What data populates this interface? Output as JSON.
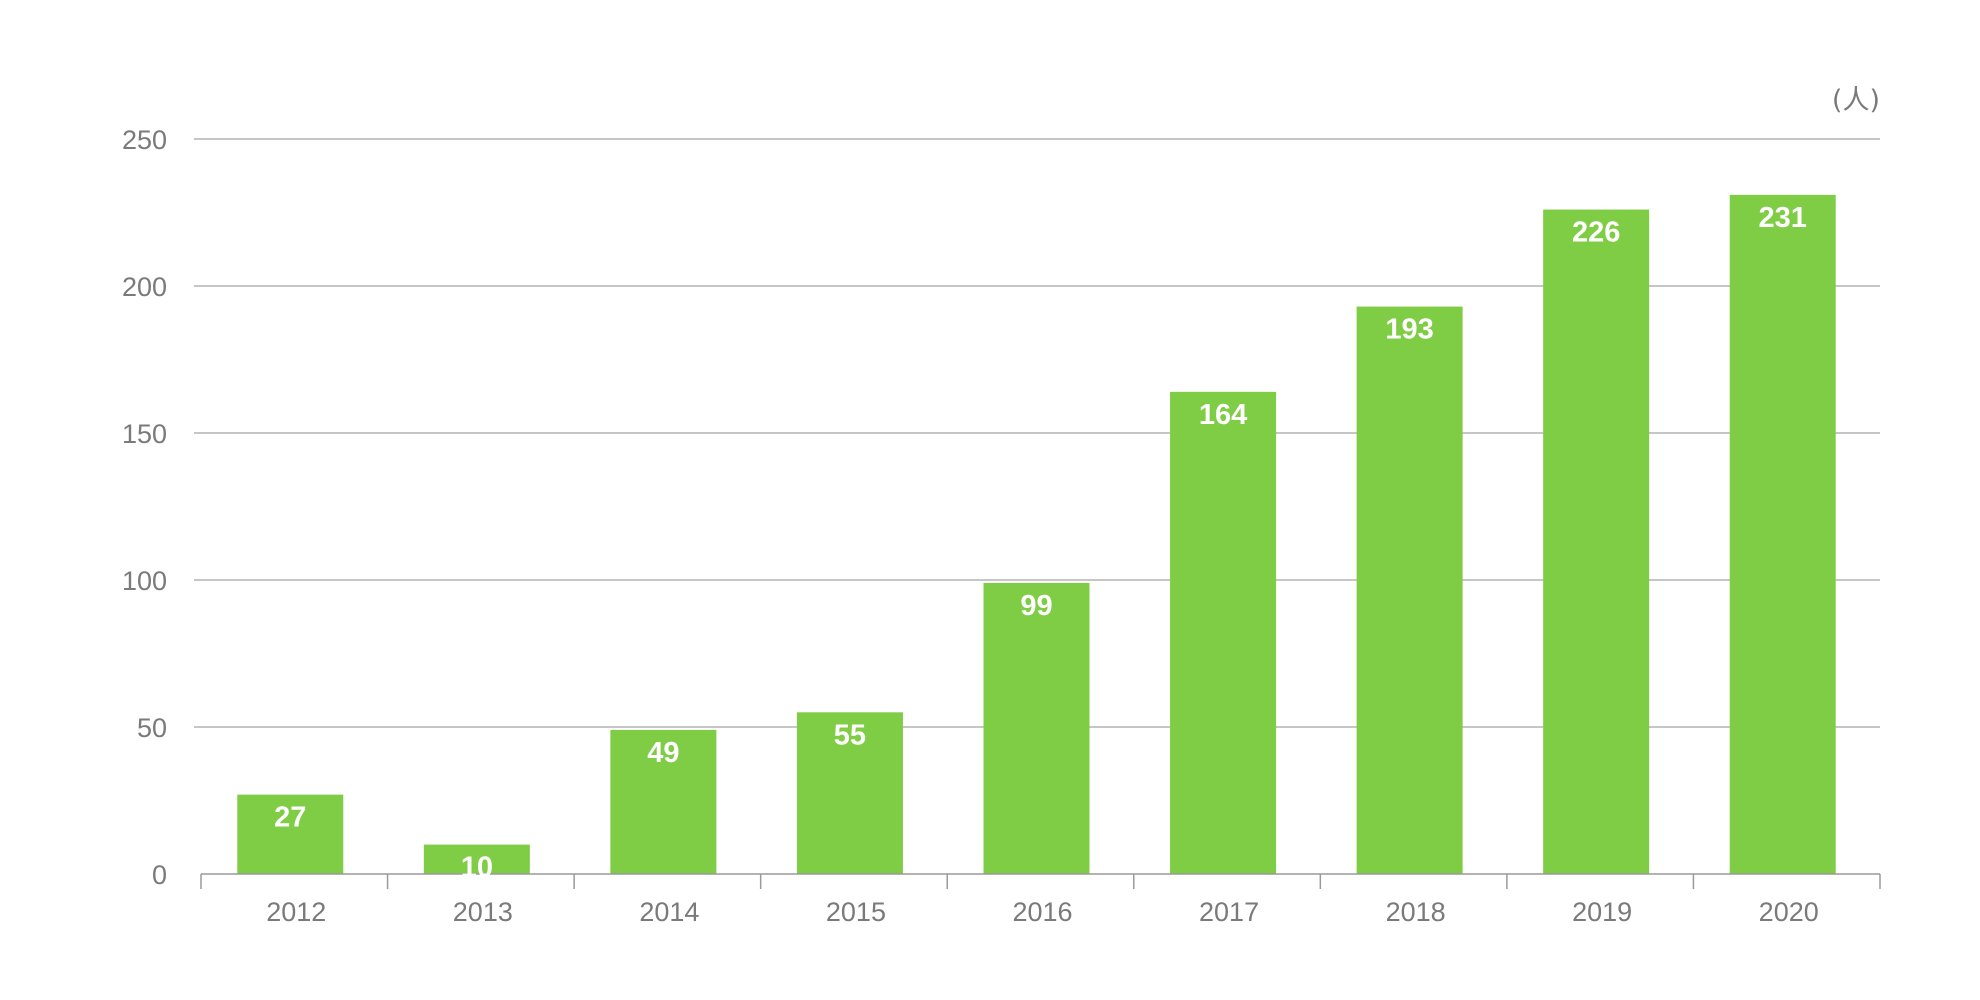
{
  "chart_data": {
    "type": "bar",
    "title": "",
    "xlabel": "",
    "ylabel": "",
    "unit": "(人)",
    "categories": [
      "2012",
      "2013",
      "2014",
      "2015",
      "2016",
      "2017",
      "2018",
      "2019",
      "2020"
    ],
    "values": [
      27,
      10,
      49,
      55,
      99,
      164,
      193,
      226,
      231
    ],
    "data_labels": [
      "27",
      "10",
      "49",
      "55",
      "99",
      "164",
      "193",
      "226",
      "231"
    ],
    "ylim": [
      0,
      250
    ],
    "yticks": [
      0,
      50,
      100,
      150,
      200,
      250
    ],
    "ytick_labels": [
      "0",
      "50",
      "100",
      "150",
      "200",
      "250"
    ],
    "grid": true,
    "legend": "none",
    "colors": {
      "bar": "#7fcd44",
      "grid": "#b3b3b3",
      "axis": "#9a9a9a",
      "tick_text": "#7a7a7a",
      "data_label_text": "#ffffff"
    }
  }
}
